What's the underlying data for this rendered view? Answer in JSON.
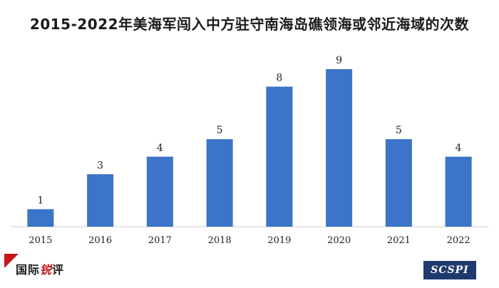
{
  "chart_data": {
    "type": "bar",
    "title": "2015-2022年美海军闯入中方驻守南海岛礁领海或邻近海域的次数",
    "categories": [
      "2015",
      "2016",
      "2017",
      "2018",
      "2019",
      "2020",
      "2021",
      "2022"
    ],
    "values": [
      1,
      3,
      4,
      5,
      8,
      9,
      5,
      4
    ],
    "bar_color": "#3b74c8",
    "ylim": [
      0,
      9
    ],
    "grid": false,
    "legend": "none"
  },
  "logos": {
    "left_main": "国际",
    "left_accent": "锐",
    "left_end": "评",
    "right": "SCSPI"
  }
}
